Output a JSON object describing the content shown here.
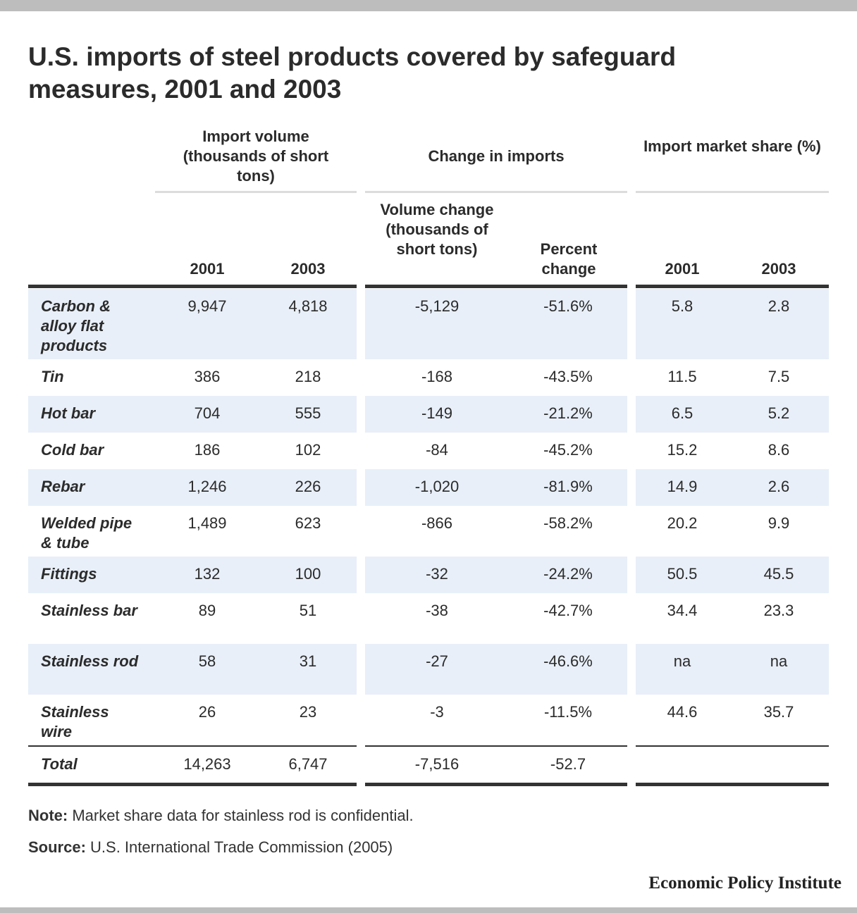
{
  "chart_data": {
    "type": "table",
    "title": "U.S. imports of steel products covered by safeguard measures, 2001 and 2003",
    "column_groups": [
      {
        "label": "Import volume (thousands of short tons)",
        "columns": [
          "2001",
          "2003"
        ]
      },
      {
        "label": "Change in imports",
        "columns": [
          "Volume change (thousands of short tons)",
          "Percent change"
        ]
      },
      {
        "label": "Import market share (%)",
        "columns": [
          "2001",
          "2003"
        ]
      }
    ],
    "rows": [
      {
        "label": "Carbon & alloy flat products",
        "values": [
          "9,947",
          "4,818",
          "-5,129",
          "-51.6%",
          "5.8",
          "2.8"
        ]
      },
      {
        "label": "Tin",
        "values": [
          "386",
          "218",
          "-168",
          "-43.5%",
          "11.5",
          "7.5"
        ]
      },
      {
        "label": "Hot bar",
        "values": [
          "704",
          "555",
          "-149",
          "-21.2%",
          "6.5",
          "5.2"
        ]
      },
      {
        "label": "Cold bar",
        "values": [
          "186",
          "102",
          "-84",
          "-45.2%",
          "15.2",
          "8.6"
        ]
      },
      {
        "label": "Rebar",
        "values": [
          "1,246",
          "226",
          "-1,020",
          "-81.9%",
          "14.9",
          "2.6"
        ]
      },
      {
        "label": "Welded pipe & tube",
        "values": [
          "1,489",
          "623",
          "-866",
          "-58.2%",
          "20.2",
          "9.9"
        ]
      },
      {
        "label": "Fittings",
        "values": [
          "132",
          "100",
          "-32",
          "-24.2%",
          "50.5",
          "45.5"
        ]
      },
      {
        "label": "Stainless bar",
        "values": [
          "89",
          "51",
          "-38",
          "-42.7%",
          "34.4",
          "23.3"
        ]
      },
      {
        "label": "Stainless rod",
        "values": [
          "58",
          "31",
          "-27",
          "-46.6%",
          "na",
          "na"
        ]
      },
      {
        "label": "Stainless wire",
        "values": [
          "26",
          "23",
          "-3",
          "-11.5%",
          "44.6",
          "35.7"
        ]
      }
    ],
    "total": {
      "label": "Total",
      "values": [
        "14,263",
        "6,747",
        "-7,516",
        "-52.7",
        "",
        ""
      ]
    },
    "band_color": "#e8eff8"
  },
  "note": {
    "label": "Note:",
    "text": " Market share data for stainless rod is confidential."
  },
  "source": {
    "label": "Source:",
    "text": " U.S. International Trade Commission (2005)"
  },
  "brand": "Economic Policy Institute"
}
